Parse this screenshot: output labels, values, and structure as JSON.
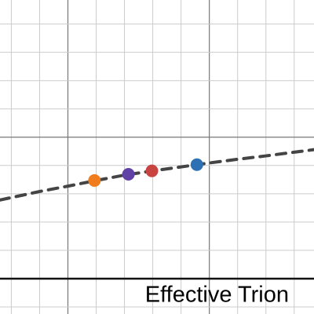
{
  "chart_data": {
    "type": "line",
    "label": "Effective Trion",
    "xlim": [
      -2.4,
      8.7
    ],
    "ylim": [
      -1.25,
      9.85
    ],
    "xticks": [
      -2,
      -1,
      0,
      1,
      2,
      3,
      4,
      5,
      6,
      7,
      8
    ],
    "yticks": [
      -1,
      0,
      1,
      2,
      3,
      4,
      5,
      6,
      7,
      8,
      9
    ],
    "grid": true,
    "curve": {
      "color": "#444444",
      "dashed": true,
      "x": [
        -2.4,
        -1,
        0,
        1,
        2,
        3,
        4,
        5,
        6,
        7,
        8,
        8.7
      ],
      "y": [
        2.78,
        3.08,
        3.27,
        3.47,
        3.66,
        3.81,
        3.95,
        4.09,
        4.22,
        4.34,
        4.47,
        4.56
      ]
    },
    "points": [
      {
        "x": 0.94,
        "y": 3.47,
        "color": "#f07c1c"
      },
      {
        "x": 2.14,
        "y": 3.69,
        "color": "#6042a6"
      },
      {
        "x": 2.97,
        "y": 3.81,
        "color": "#c74440"
      },
      {
        "x": 4.56,
        "y": 4.03,
        "color": "#2d70b3"
      }
    ]
  }
}
